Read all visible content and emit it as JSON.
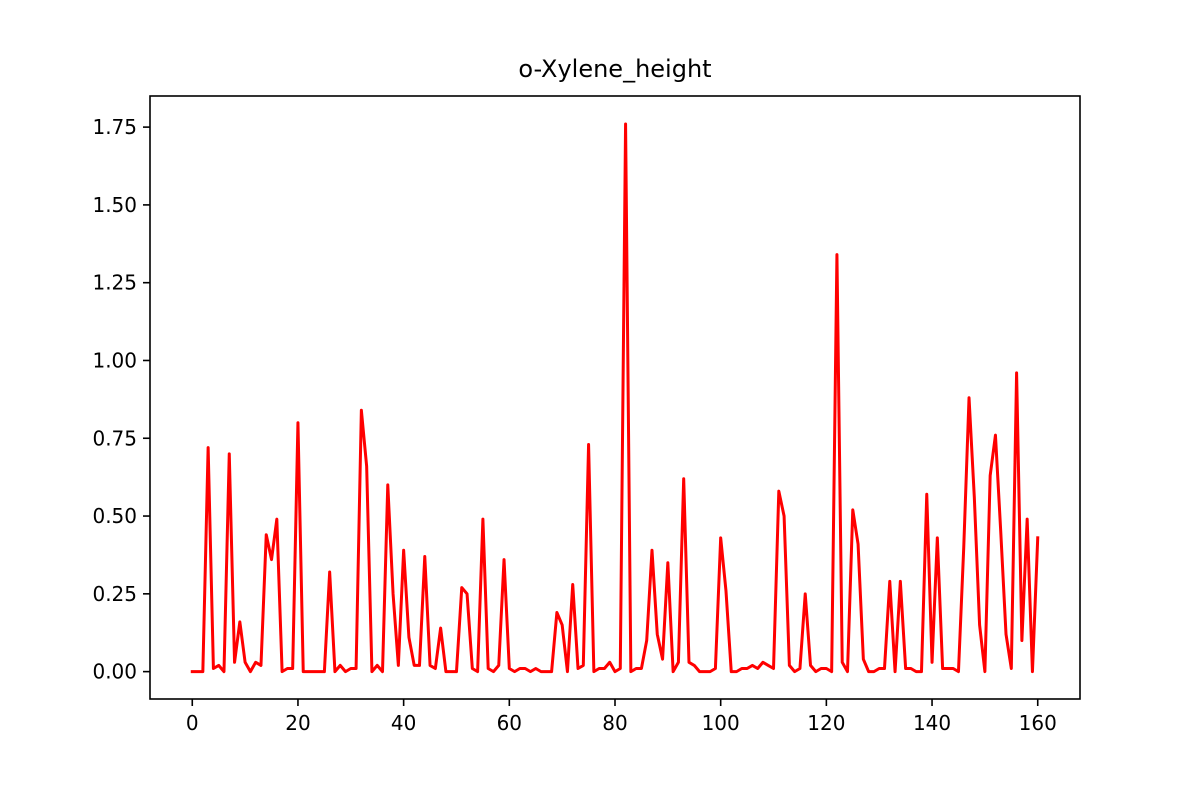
{
  "chart_data": {
    "type": "line",
    "title": "o-Xylene_height",
    "xlabel": "",
    "ylabel": "",
    "xlim": [
      -8,
      168
    ],
    "ylim": [
      -0.088,
      1.85
    ],
    "xticks": [
      0,
      20,
      40,
      60,
      80,
      100,
      120,
      140,
      160
    ],
    "xtick_labels": [
      "0",
      "20",
      "40",
      "60",
      "80",
      "100",
      "120",
      "140",
      "160"
    ],
    "yticks": [
      0.0,
      0.25,
      0.5,
      0.75,
      1.0,
      1.25,
      1.5,
      1.75
    ],
    "ytick_labels": [
      "0.00",
      "0.25",
      "0.50",
      "0.75",
      "1.00",
      "1.25",
      "1.50",
      "1.75"
    ],
    "grid": false,
    "series": [
      {
        "color": "#ff0000",
        "x": [
          0,
          1,
          2,
          3,
          4,
          5,
          6,
          7,
          8,
          9,
          10,
          11,
          12,
          13,
          14,
          15,
          16,
          17,
          18,
          19,
          20,
          21,
          22,
          23,
          24,
          25,
          26,
          27,
          28,
          29,
          30,
          31,
          32,
          33,
          34,
          35,
          36,
          37,
          38,
          39,
          40,
          41,
          42,
          43,
          44,
          45,
          46,
          47,
          48,
          49,
          50,
          51,
          52,
          53,
          54,
          55,
          56,
          57,
          58,
          59,
          60,
          61,
          62,
          63,
          64,
          65,
          66,
          67,
          68,
          69,
          70,
          71,
          72,
          73,
          74,
          75,
          76,
          77,
          78,
          79,
          80,
          81,
          82,
          83,
          84,
          85,
          86,
          87,
          88,
          89,
          90,
          91,
          92,
          93,
          94,
          95,
          96,
          97,
          98,
          99,
          100,
          101,
          102,
          103,
          104,
          105,
          106,
          107,
          108,
          109,
          110,
          111,
          112,
          113,
          114,
          115,
          116,
          117,
          118,
          119,
          120,
          121,
          122,
          123,
          124,
          125,
          126,
          127,
          128,
          129,
          130,
          131,
          132,
          133,
          134,
          135,
          136,
          137,
          138,
          139,
          140,
          141,
          142,
          143,
          144,
          145,
          146,
          147,
          148,
          149,
          150,
          151,
          152,
          153,
          154,
          155,
          156,
          157,
          158,
          159,
          160
        ],
        "y": [
          0,
          0,
          0,
          0.72,
          0.01,
          0.02,
          0,
          0.7,
          0.03,
          0.16,
          0.03,
          0,
          0.03,
          0.02,
          0.44,
          0.36,
          0.49,
          0,
          0.01,
          0.01,
          0.8,
          0,
          0,
          0,
          0,
          0,
          0.32,
          0,
          0.02,
          0,
          0.01,
          0.01,
          0.84,
          0.66,
          0,
          0.02,
          0,
          0.6,
          0.25,
          0.02,
          0.39,
          0.11,
          0.02,
          0.02,
          0.37,
          0.02,
          0.01,
          0.14,
          0,
          0,
          0,
          0.27,
          0.25,
          0.01,
          0,
          0.49,
          0.01,
          0,
          0.02,
          0.36,
          0.01,
          0,
          0.01,
          0.01,
          0,
          0.01,
          0,
          0,
          0,
          0.19,
          0.15,
          0,
          0.28,
          0.01,
          0.02,
          0.73,
          0,
          0.01,
          0.01,
          0.03,
          0,
          0.01,
          1.76,
          0,
          0.01,
          0.01,
          0.1,
          0.39,
          0.12,
          0.04,
          0.35,
          0,
          0.03,
          0.62,
          0.03,
          0.02,
          0,
          0,
          0,
          0.01,
          0.43,
          0.26,
          0,
          0,
          0.01,
          0.01,
          0.02,
          0.01,
          0.03,
          0.02,
          0.01,
          0.58,
          0.5,
          0.02,
          0,
          0.01,
          0.25,
          0.02,
          0,
          0.01,
          0.01,
          0,
          1.34,
          0.03,
          0,
          0.52,
          0.41,
          0.04,
          0,
          0,
          0.01,
          0.01,
          0.29,
          0,
          0.29,
          0.01,
          0.01,
          0,
          0,
          0.57,
          0.03,
          0.43,
          0.01,
          0.01,
          0.01,
          0,
          0.4,
          0.88,
          0.56,
          0.15,
          0,
          0.63,
          0.76,
          0.45,
          0.12,
          0.01,
          0.96,
          0.1,
          0.49,
          0,
          0.43
        ]
      }
    ]
  }
}
